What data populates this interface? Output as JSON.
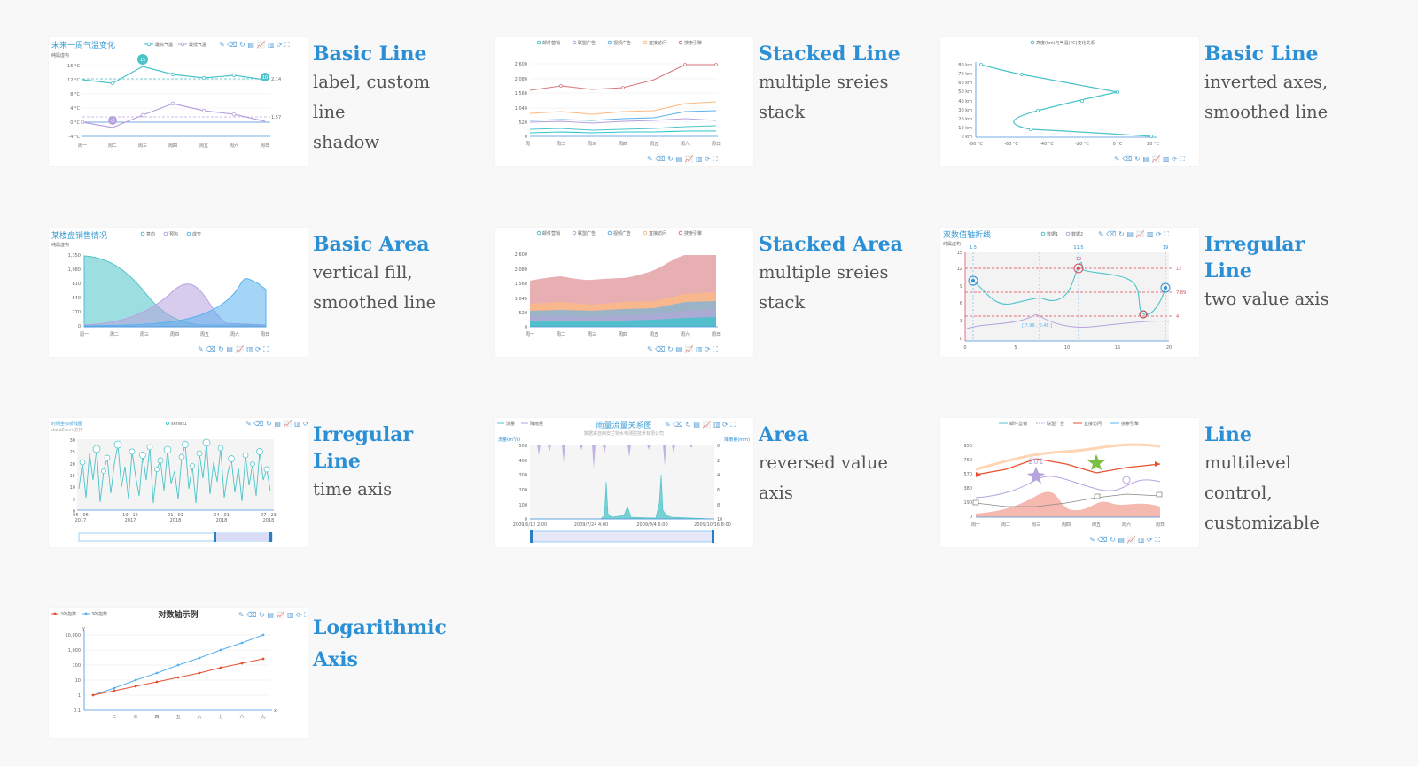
{
  "toolbar_glyphs": "✎ ⌫ ↻ ▤ 📈 ▥ ⟳ ⛶",
  "items": [
    {
      "title": "Basic Line",
      "desc": "label, custom line\nshadow",
      "thumb": {
        "title": "未来一周气温变化",
        "subtitle": "纯属虚构",
        "legend": [
          "最高气温",
          "最低气温"
        ],
        "yticks": [
          "16 °C",
          "12 °C",
          "8 °C",
          "4 °C",
          "0 °C",
          "-4 °C"
        ],
        "xcats": [
          "周一",
          "周二",
          "周三",
          "周四",
          "周五",
          "周六",
          "周日"
        ],
        "labels": [
          "15",
          "-2",
          "10",
          "2.14",
          "1.57"
        ]
      }
    },
    {
      "title": "Stacked Line",
      "desc": "multiple sreies\nstack",
      "thumb": {
        "legend": [
          "邮件营销",
          "联盟广告",
          "视频广告",
          "直接访问",
          "搜索引擎"
        ],
        "yticks": [
          "2,600",
          "2,080",
          "1,560",
          "1,040",
          "520",
          "0"
        ],
        "xcats": [
          "周一",
          "周二",
          "周三",
          "周四",
          "周五",
          "周六",
          "周日"
        ]
      }
    },
    {
      "title": "Basic Line",
      "desc": "inverted axes,\nsmoothed line",
      "thumb": {
        "legend": [
          "高度(km)与气温(°C)变化关系"
        ],
        "yticks": [
          "80 km",
          "70 km",
          "60 km",
          "50 km",
          "40 km",
          "30 km",
          "20 km",
          "10 km",
          "0 km"
        ],
        "xticks": [
          "-80 °C",
          "-60 °C",
          "-40 °C",
          "-20 °C",
          "0 °C",
          "20 °C"
        ]
      }
    },
    {
      "title": "Basic Area",
      "desc": "vertical fill,\nsmoothed line",
      "thumb": {
        "title": "某楼盘销售情况",
        "subtitle": "纯属虚构",
        "legend": [
          "意向",
          "预购",
          "成交"
        ],
        "yticks": [
          "1,350",
          "1,080",
          "810",
          "540",
          "270",
          "0"
        ],
        "xcats": [
          "周一",
          "周二",
          "周三",
          "周四",
          "周五",
          "周六",
          "周日"
        ]
      }
    },
    {
      "title": "Stacked Area",
      "desc": "multiple sreies\nstack",
      "thumb": {
        "legend": [
          "邮件营销",
          "联盟广告",
          "视频广告",
          "直接访问",
          "搜索引擎"
        ],
        "yticks": [
          "2,600",
          "2,080",
          "1,560",
          "1,040",
          "520",
          "0"
        ],
        "xcats": [
          "周一",
          "周二",
          "周三",
          "周四",
          "周五",
          "周六",
          "周日"
        ]
      }
    },
    {
      "title": "Irregular Line",
      "desc": "two value axis",
      "thumb": {
        "title": "双数值轴折线",
        "subtitle": "纯属虚构",
        "legend": [
          "数据1",
          "数据2"
        ],
        "yticks": [
          "15",
          "12",
          "9",
          "6",
          "3",
          "0"
        ],
        "xticks": [
          "0",
          "5",
          "10",
          "15",
          "20"
        ],
        "labels": [
          "1.5",
          "11.5",
          "19",
          "12",
          "7.89",
          "4",
          "[ 7.96 , 0.48 ]"
        ]
      }
    },
    {
      "title": "Irregular Line",
      "desc": "time axis",
      "thumb": {
        "title": "时间坐标折线图",
        "subtitle": "dataZoom支持",
        "legend": [
          "series1"
        ],
        "yticks": [
          "30",
          "25",
          "20",
          "15",
          "10",
          "5",
          "0"
        ],
        "xticks": [
          "06 - 06",
          "10 - 16",
          "01 - 01",
          "04 - 01",
          "07 - 23"
        ],
        "years": [
          "2017",
          "2017",
          "2018",
          "2018",
          "2018"
        ]
      }
    },
    {
      "title": "Area",
      "desc": "reversed value\naxis",
      "thumb": {
        "title": "雨量流量关系图",
        "subtitle": "数据来自西安兰特水电测控技术有限公司",
        "legend": [
          "流量",
          "降雨量"
        ],
        "ylabel_left": "流量(m³/s)",
        "ylabel_right": "降雨量(mm)",
        "yticks": [
          "500",
          "400",
          "300",
          "200",
          "100",
          "0"
        ],
        "yticks_right": [
          "0",
          "2",
          "4",
          "6",
          "8",
          "10"
        ],
        "xticks": [
          "2009/6/12 2:00",
          "2009/7/24 4:00",
          "2009/9/4 6:00",
          "2009/10/16 8:00"
        ]
      }
    },
    {
      "title": "Line",
      "desc": "multilevel\ncontrol,\ncustomizable",
      "thumb": {
        "legend": [
          "邮件营销",
          "联盟广告",
          "直接访问",
          "搜索引擎"
        ],
        "yticks": [
          "950",
          "760",
          "570",
          "380",
          "190",
          "0"
        ],
        "xcats": [
          "周一",
          "周二",
          "周三",
          "周四",
          "周五",
          "周六",
          "周日"
        ],
        "labels": [
          "201"
        ]
      }
    },
    {
      "title": "Logarithmic\nAxis",
      "desc": "",
      "thumb": {
        "title": "对数轴示例",
        "legend": [
          "2的指数",
          "3的指数"
        ],
        "yticks": [
          "10,000",
          "1,000",
          "100",
          "10",
          "1",
          "0.1"
        ],
        "xcats": [
          "一",
          "二",
          "三",
          "四",
          "五",
          "六",
          "七",
          "八",
          "九"
        ],
        "yaxis_label": "y",
        "xaxis_label": "x"
      }
    }
  ]
}
